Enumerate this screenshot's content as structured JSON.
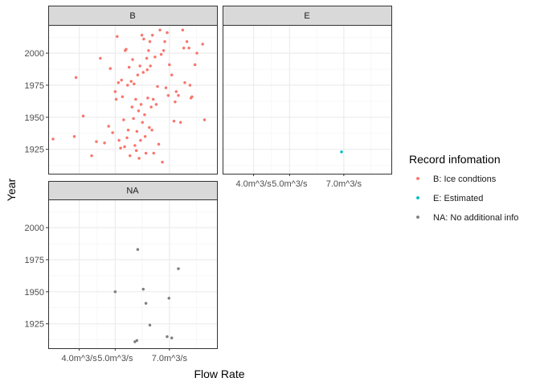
{
  "chart_data": {
    "type": "scatter",
    "facet_by": "Record infomation code",
    "xlabel": "Flow Rate",
    "ylabel": "Year",
    "x_unit": "m^3/s",
    "x_scale": "log",
    "xlim": [
      3.3,
      9.4
    ],
    "ylim": [
      1906,
      2022
    ],
    "x_ticks": [
      {
        "value": 4.0,
        "label": "4.0m^3/s"
      },
      {
        "value": 5.0,
        "label": "5.0m^3/s"
      },
      {
        "value": 7.0,
        "label": "7.0m^3/s"
      }
    ],
    "y_ticks": [
      {
        "value": 1925,
        "label": "1925"
      },
      {
        "value": 1950,
        "label": "1950"
      },
      {
        "value": 1975,
        "label": "1975"
      },
      {
        "value": 2000,
        "label": "2000"
      }
    ],
    "grid": true,
    "legend": {
      "title": "Record infomation",
      "position": "right",
      "items": [
        {
          "key": "B",
          "label": "B: Ice condtions",
          "color": "#F8766D"
        },
        {
          "key": "E",
          "label": "E: Estimated",
          "color": "#00BFC4"
        },
        {
          "key": "NA",
          "label": "NA: No additional info",
          "color": "#7F7F7F"
        }
      ]
    },
    "panels": [
      {
        "label": "B",
        "series": "B",
        "points": [
          [
            3.4,
            1933
          ],
          [
            3.88,
            1935
          ],
          [
            3.92,
            1981
          ],
          [
            4.1,
            1951
          ],
          [
            4.32,
            1920
          ],
          [
            4.45,
            1931
          ],
          [
            4.56,
            1996
          ],
          [
            4.68,
            1930
          ],
          [
            4.8,
            1943
          ],
          [
            4.85,
            1988
          ],
          [
            4.92,
            1938
          ],
          [
            5.0,
            1970
          ],
          [
            5.03,
            1964
          ],
          [
            5.06,
            2013
          ],
          [
            5.1,
            1977
          ],
          [
            5.12,
            1932
          ],
          [
            5.17,
            1926
          ],
          [
            5.2,
            1979
          ],
          [
            5.23,
            1966
          ],
          [
            5.27,
            1948
          ],
          [
            5.3,
            1927
          ],
          [
            5.32,
            2002
          ],
          [
            5.35,
            2003
          ],
          [
            5.38,
            1934
          ],
          [
            5.4,
            1975
          ],
          [
            5.42,
            1940
          ],
          [
            5.45,
            1989
          ],
          [
            5.48,
            1920
          ],
          [
            5.52,
            1978
          ],
          [
            5.55,
            1958
          ],
          [
            5.57,
            1995
          ],
          [
            5.6,
            1949
          ],
          [
            5.62,
            1976
          ],
          [
            5.65,
            1928
          ],
          [
            5.68,
            1964
          ],
          [
            5.7,
            1924
          ],
          [
            5.72,
            1939
          ],
          [
            5.75,
            1983
          ],
          [
            5.78,
            1955
          ],
          [
            5.8,
            1918
          ],
          [
            5.83,
            1990
          ],
          [
            5.85,
            1932
          ],
          [
            5.87,
            1960
          ],
          [
            5.9,
            2014
          ],
          [
            5.92,
            1946
          ],
          [
            5.95,
            1985
          ],
          [
            5.97,
            2011
          ],
          [
            6.0,
            1952
          ],
          [
            6.02,
            1935
          ],
          [
            6.05,
            1922
          ],
          [
            6.08,
            1996
          ],
          [
            6.1,
            1987
          ],
          [
            6.12,
            1965
          ],
          [
            6.15,
            2002
          ],
          [
            6.18,
            1942
          ],
          [
            6.2,
            2009
          ],
          [
            6.22,
            1990
          ],
          [
            6.25,
            1958
          ],
          [
            6.28,
            1940
          ],
          [
            6.3,
            2014
          ],
          [
            6.33,
            1964
          ],
          [
            6.35,
            1922
          ],
          [
            6.4,
            1997
          ],
          [
            6.45,
            1960
          ],
          [
            6.5,
            1974
          ],
          [
            6.55,
            1929
          ],
          [
            6.6,
            2018
          ],
          [
            6.65,
            1999
          ],
          [
            6.7,
            1915
          ],
          [
            6.75,
            2002
          ],
          [
            6.8,
            2009
          ],
          [
            6.85,
            1973
          ],
          [
            6.9,
            2016
          ],
          [
            6.95,
            1967
          ],
          [
            7.0,
            1991
          ],
          [
            7.1,
            1983
          ],
          [
            7.2,
            1947
          ],
          [
            7.25,
            1962
          ],
          [
            7.3,
            1970
          ],
          [
            7.4,
            1967
          ],
          [
            7.5,
            1946
          ],
          [
            7.6,
            2018
          ],
          [
            7.65,
            2004
          ],
          [
            7.7,
            1977
          ],
          [
            7.8,
            2009
          ],
          [
            7.9,
            2004
          ],
          [
            7.95,
            1975
          ],
          [
            8.0,
            1965
          ],
          [
            8.05,
            1966
          ],
          [
            8.2,
            1991
          ],
          [
            8.3,
            2000
          ],
          [
            8.6,
            2007
          ],
          [
            8.7,
            1948
          ]
        ]
      },
      {
        "label": "E",
        "series": "E",
        "points": [
          [
            6.9,
            1923
          ]
        ]
      },
      {
        "label": "NA",
        "series": "NA",
        "points": [
          [
            5.0,
            1950
          ],
          [
            5.65,
            1911
          ],
          [
            5.72,
            1912
          ],
          [
            5.75,
            1983
          ],
          [
            5.95,
            1952
          ],
          [
            6.05,
            1941
          ],
          [
            6.2,
            1924
          ],
          [
            6.9,
            1915
          ],
          [
            6.98,
            1945
          ],
          [
            7.1,
            1914
          ],
          [
            7.4,
            1968
          ]
        ]
      }
    ]
  }
}
